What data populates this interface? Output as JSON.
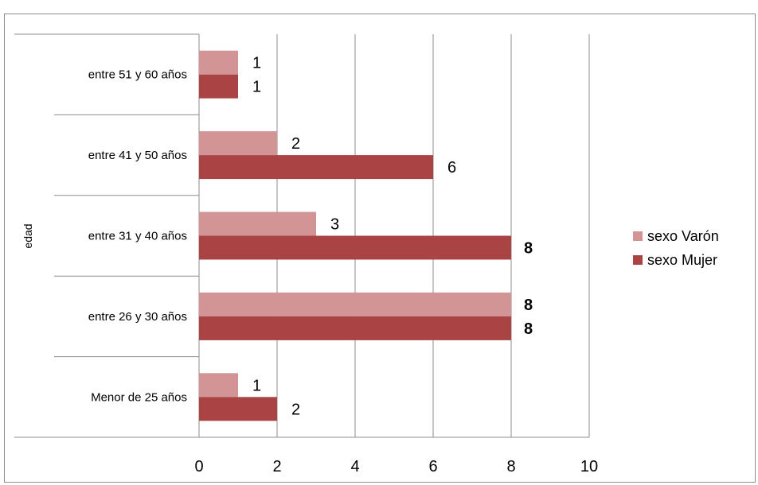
{
  "chart_data": {
    "type": "bar",
    "orientation": "horizontal",
    "ylabel": "edad",
    "xlabel": "",
    "title": "",
    "xlim": [
      0,
      10
    ],
    "x_ticks": [
      "0",
      "2",
      "4",
      "6",
      "8",
      "10"
    ],
    "categories": [
      "Menor de 25 años",
      "entre 26 y 30 años",
      "entre 31 y 40 años",
      "entre 41 y 50 años",
      "entre 51 y 60 años"
    ],
    "series": [
      {
        "name": "sexo Varón",
        "color": "#d39495",
        "values": [
          1,
          8,
          3,
          2,
          1
        ]
      },
      {
        "name": "sexo Mujer",
        "color": "#aa4444",
        "values": [
          2,
          8,
          8,
          6,
          1
        ]
      }
    ],
    "grid": "vertical",
    "legend_position": "right"
  }
}
